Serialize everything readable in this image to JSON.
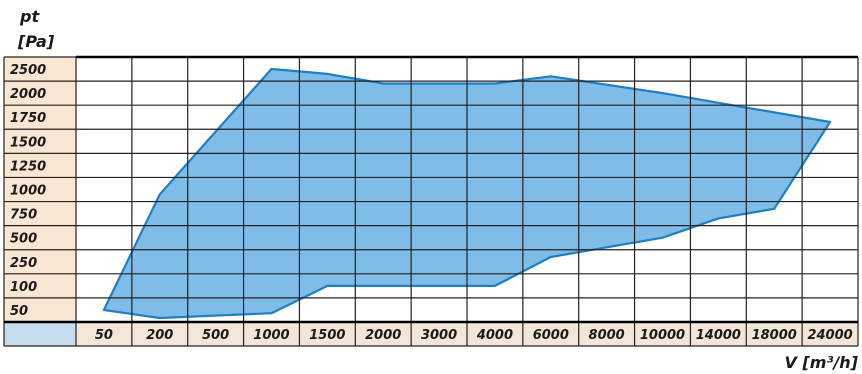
{
  "chart_data": {
    "type": "area",
    "ylabel_line1": "pt",
    "ylabel_line2": "[Pa]",
    "xlabel": "V [m³/h]",
    "x_ticks": [
      "50",
      "200",
      "500",
      "1000",
      "1500",
      "2000",
      "3000",
      "4000",
      "6000",
      "8000",
      "10000",
      "14000",
      "18000",
      "24000"
    ],
    "y_ticks": [
      "2500",
      "2000",
      "1750",
      "1500",
      "1250",
      "1000",
      "750",
      "500",
      "250",
      "100",
      "50"
    ],
    "axis_scale": "categorical (non-linear)",
    "grid": true,
    "colors": {
      "area_fill": "#7fbde8",
      "area_stroke": "#1f7fc0",
      "grid": "#222222",
      "tick_band_y": "#f9e6d3",
      "tick_band_x": "#f2e6d8",
      "corner_cell": "#c5dcef"
    },
    "envelope": [
      {
        "x": "50",
        "y": 50
      },
      {
        "x": "200",
        "y": 950
      },
      {
        "x": "1000",
        "y": 2500
      },
      {
        "x": "1500",
        "y": 2400
      },
      {
        "x": "2000",
        "y": 2200
      },
      {
        "x": "4000",
        "y": 2200
      },
      {
        "x": "6000",
        "y": 2350
      },
      {
        "x": "10000",
        "y": 2000
      },
      {
        "x": "14000",
        "y": 1900
      },
      {
        "x": "24000",
        "y": 1700
      },
      {
        "x": "18000",
        "y": 800
      },
      {
        "x": "14000",
        "y": 700
      },
      {
        "x": "10000",
        "y": 500
      },
      {
        "x": "6000",
        "y": 300
      },
      {
        "x": "4000",
        "y": 100
      },
      {
        "x": "1500",
        "y": 100
      },
      {
        "x": "1000",
        "y": 30
      },
      {
        "x": "200",
        "y": 0
      }
    ]
  }
}
